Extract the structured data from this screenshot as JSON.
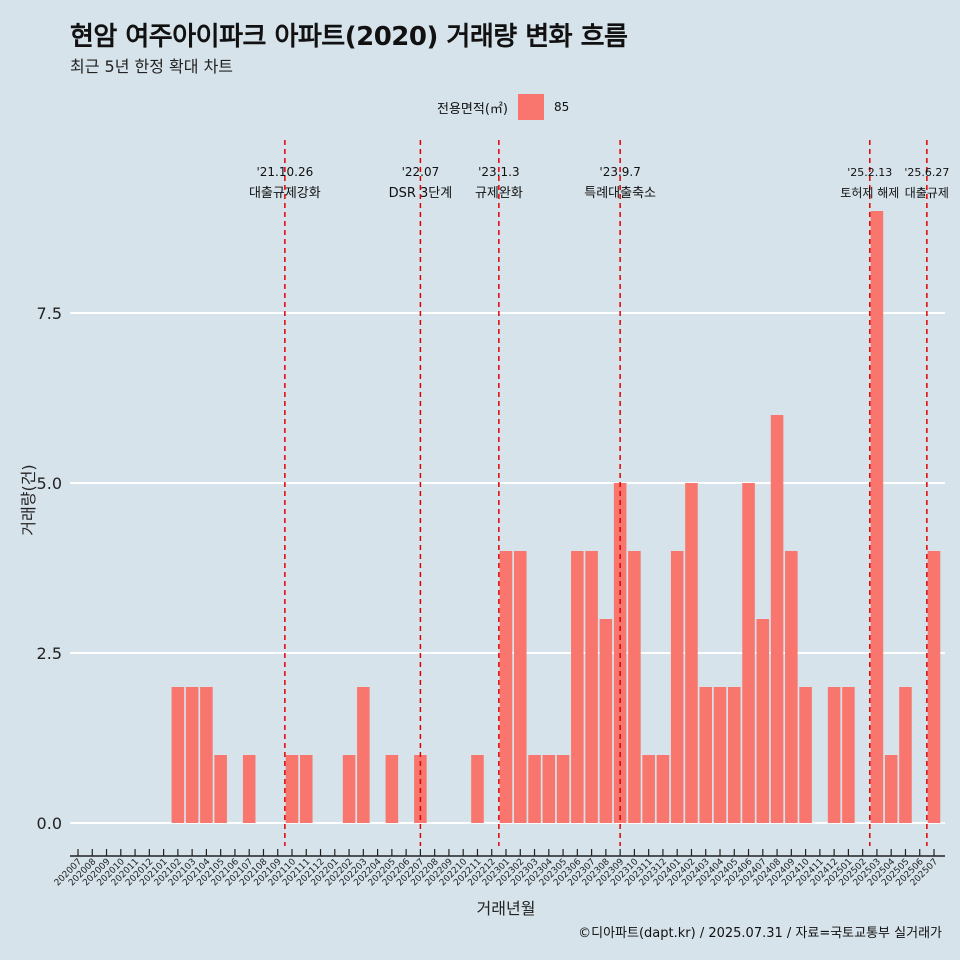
{
  "title": "현암 여주아이파크 아파트(2020) 거래량 변화 흐름",
  "subtitle": "최근 5년 한정 확대 차트",
  "legend": {
    "title": "전용면적(㎡)",
    "items": [
      {
        "label": "85",
        "color": "#f8766d"
      }
    ]
  },
  "caption": "©디아파트(dapt.kr) / 2025.07.31 / 자료=국토교통부 실거래가",
  "colors": {
    "bar": "#f8766d",
    "background": "#d6e3ea",
    "grid": "#ffffff",
    "event_line": "#e00000"
  },
  "chart_data": {
    "type": "bar",
    "title": "현암 여주아이파크 아파트(2020) 거래량 변화 흐름",
    "subtitle": "최근 5년 한정 확대 차트",
    "xlabel": "거래년월",
    "ylabel": "거래량(건)",
    "ylim": [
      -0.45,
      9.45
    ],
    "yticks": [
      0.0,
      2.5,
      5.0,
      7.5
    ],
    "ytick_labels": [
      "0.0",
      "2.5",
      "5.0",
      "7.5"
    ],
    "grid": true,
    "legend_position": "top",
    "categories": [
      "202007",
      "202008",
      "202009",
      "202010",
      "202011",
      "202012",
      "202101",
      "202102",
      "202103",
      "202104",
      "202105",
      "202106",
      "202107",
      "202108",
      "202109",
      "202110",
      "202111",
      "202112",
      "202201",
      "202202",
      "202203",
      "202204",
      "202205",
      "202206",
      "202207",
      "202208",
      "202209",
      "202210",
      "202211",
      "202212",
      "202301",
      "202302",
      "202303",
      "202304",
      "202305",
      "202306",
      "202307",
      "202308",
      "202309",
      "202310",
      "202311",
      "202312",
      "202401",
      "202402",
      "202403",
      "202404",
      "202405",
      "202406",
      "202407",
      "202408",
      "202409",
      "202410",
      "202411",
      "202412",
      "202501",
      "202502",
      "202503",
      "202504",
      "202505",
      "202506",
      "202507"
    ],
    "series": [
      {
        "name": "85",
        "values": [
          0,
          0,
          0,
          0,
          0,
          0,
          0,
          2,
          2,
          2,
          1,
          0,
          1,
          0,
          0,
          1,
          1,
          0,
          0,
          1,
          2,
          0,
          1,
          0,
          1,
          0,
          0,
          0,
          1,
          0,
          4,
          4,
          1,
          1,
          1,
          4,
          4,
          3,
          5,
          4,
          1,
          1,
          4,
          5,
          2,
          2,
          2,
          5,
          3,
          6,
          4,
          2,
          0,
          2,
          2,
          0,
          9,
          1,
          2,
          0,
          4
        ]
      }
    ],
    "events": [
      {
        "date": "'21.10.26",
        "label": "대출규제강화",
        "at": "202110",
        "offset": -0.5
      },
      {
        "date": "'22.07",
        "label": "DSR 3단계",
        "at": "202207",
        "offset": 0
      },
      {
        "date": "'23.1.3",
        "label": "규제완화",
        "at": "202301",
        "offset": -0.5
      },
      {
        "date": "'23.9.7",
        "label": "특례대출축소",
        "at": "202309",
        "offset": 0
      },
      {
        "date": "'25.2.13",
        "label": "토허제 해제",
        "at": "202502",
        "offset": 0.5
      },
      {
        "date": "'25.6.27",
        "label": "대출규제",
        "at": "202506",
        "offset": 0.5
      }
    ]
  }
}
